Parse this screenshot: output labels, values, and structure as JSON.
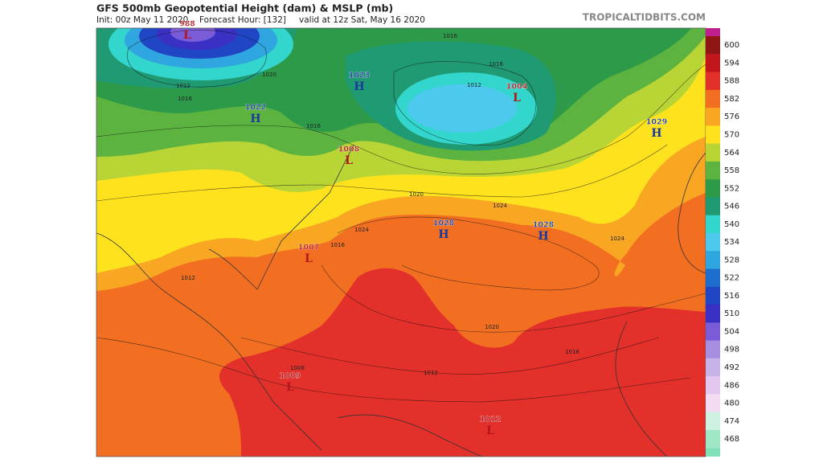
{
  "header": {
    "title": "GFS 500mb Geopotential Height (dam) & MSLP (mb)",
    "init": "Init: 00z May 11 2020",
    "forecast_hour": "Forecast Hour: [132]",
    "valid": "valid at 12z Sat, May 16 2020",
    "site": "TROPICALTIDBITS.COM"
  },
  "pressure_centers": [
    {
      "letter": "L",
      "value": "988"
    },
    {
      "letter": "H",
      "value": "1023"
    },
    {
      "letter": "H",
      "value": "1022"
    },
    {
      "letter": "L",
      "value": "1004"
    },
    {
      "letter": "H",
      "value": "1029"
    },
    {
      "letter": "L",
      "value": "1008"
    },
    {
      "letter": "H",
      "value": "1028"
    },
    {
      "letter": "H",
      "value": "1028"
    },
    {
      "letter": "L",
      "value": "1007"
    },
    {
      "letter": "L",
      "value": "1009"
    },
    {
      "letter": "L",
      "value": "1012"
    }
  ],
  "isobar_labels": [
    "1020",
    "1016",
    "1012",
    "1016",
    "1016",
    "1012",
    "1016",
    "1020",
    "1024",
    "1024",
    "1024",
    "1020",
    "1016",
    "1012",
    "1008",
    "1016",
    "1012"
  ],
  "colorbar": {
    "levels": [
      {
        "value": 600,
        "color": "#8e1616"
      },
      {
        "value": 594,
        "color": "#c3161c"
      },
      {
        "value": 588,
        "color": "#e4302a"
      },
      {
        "value": 582,
        "color": "#f26f22"
      },
      {
        "value": 576,
        "color": "#f9a623"
      },
      {
        "value": 570,
        "color": "#fde21d"
      },
      {
        "value": 564,
        "color": "#b9d535"
      },
      {
        "value": 558,
        "color": "#5cb33f"
      },
      {
        "value": 552,
        "color": "#2c9a48"
      },
      {
        "value": 546,
        "color": "#1f9a72"
      },
      {
        "value": 540,
        "color": "#33d6cc"
      },
      {
        "value": 534,
        "color": "#4cc9ec"
      },
      {
        "value": 528,
        "color": "#2fa6df"
      },
      {
        "value": 522,
        "color": "#1e6ed0"
      },
      {
        "value": 516,
        "color": "#2046c6"
      },
      {
        "value": 510,
        "color": "#3a30c4"
      },
      {
        "value": 504,
        "color": "#7b5cd8"
      },
      {
        "value": 498,
        "color": "#a68ee0"
      },
      {
        "value": 492,
        "color": "#c8b3e8"
      },
      {
        "value": 486,
        "color": "#e4c7ee"
      },
      {
        "value": 480,
        "color": "#f1dcf2"
      },
      {
        "value": 474,
        "color": "#cdf2e2"
      },
      {
        "value": 468,
        "color": "#9fe6c5"
      }
    ]
  }
}
